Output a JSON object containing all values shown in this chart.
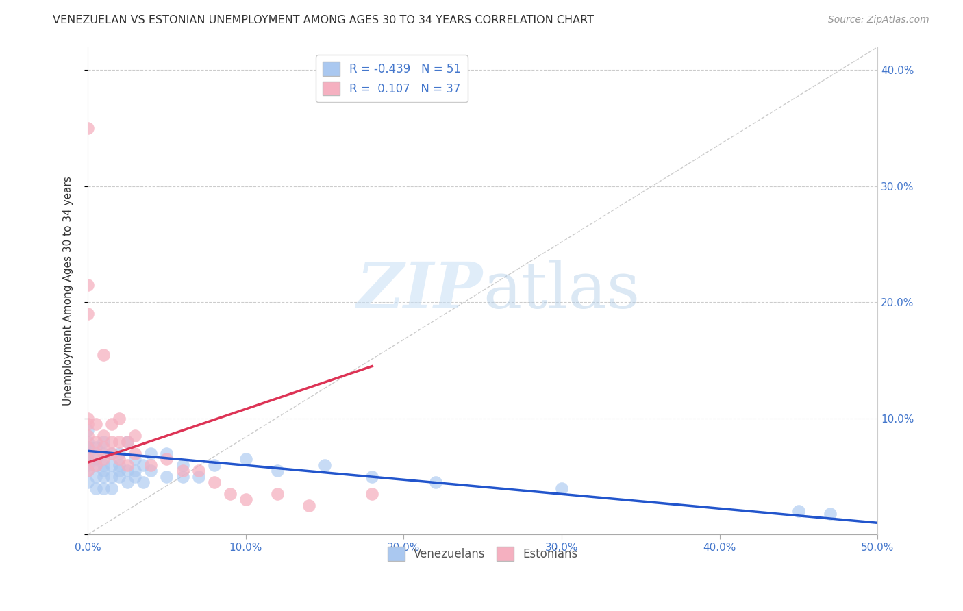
{
  "title": "VENEZUELAN VS ESTONIAN UNEMPLOYMENT AMONG AGES 30 TO 34 YEARS CORRELATION CHART",
  "source": "Source: ZipAtlas.com",
  "ylabel": "Unemployment Among Ages 30 to 34 years",
  "xlim": [
    0,
    0.5
  ],
  "ylim": [
    0,
    0.42
  ],
  "watermark_zip": "ZIP",
  "watermark_atlas": "atlas",
  "blue_R": "-0.439",
  "blue_N": "51",
  "pink_R": "0.107",
  "pink_N": "37",
  "blue_color": "#aac8f0",
  "pink_color": "#f5b0c0",
  "blue_line_color": "#2255cc",
  "pink_line_color": "#dd3355",
  "diagonal_color": "#cccccc",
  "grid_color": "#cccccc",
  "axis_color": "#4477cc",
  "venezuelan_x": [
    0.0,
    0.0,
    0.0,
    0.0,
    0.0,
    0.0,
    0.0,
    0.0,
    0.005,
    0.005,
    0.005,
    0.005,
    0.005,
    0.01,
    0.01,
    0.01,
    0.01,
    0.01,
    0.01,
    0.015,
    0.015,
    0.015,
    0.015,
    0.02,
    0.02,
    0.02,
    0.02,
    0.025,
    0.025,
    0.025,
    0.03,
    0.03,
    0.03,
    0.035,
    0.035,
    0.04,
    0.04,
    0.05,
    0.05,
    0.06,
    0.06,
    0.07,
    0.08,
    0.1,
    0.12,
    0.15,
    0.18,
    0.22,
    0.3,
    0.45,
    0.47
  ],
  "venezuelan_y": [
    0.045,
    0.055,
    0.06,
    0.065,
    0.07,
    0.075,
    0.08,
    0.09,
    0.04,
    0.05,
    0.06,
    0.065,
    0.075,
    0.04,
    0.05,
    0.055,
    0.06,
    0.07,
    0.08,
    0.04,
    0.05,
    0.06,
    0.07,
    0.05,
    0.055,
    0.06,
    0.07,
    0.045,
    0.055,
    0.08,
    0.05,
    0.055,
    0.065,
    0.045,
    0.06,
    0.055,
    0.07,
    0.05,
    0.07,
    0.05,
    0.06,
    0.05,
    0.06,
    0.065,
    0.055,
    0.06,
    0.05,
    0.045,
    0.04,
    0.02,
    0.018
  ],
  "estonian_x": [
    0.0,
    0.0,
    0.0,
    0.0,
    0.0,
    0.0,
    0.0,
    0.0,
    0.0,
    0.005,
    0.005,
    0.005,
    0.005,
    0.01,
    0.01,
    0.01,
    0.01,
    0.015,
    0.015,
    0.015,
    0.02,
    0.02,
    0.02,
    0.025,
    0.025,
    0.03,
    0.03,
    0.04,
    0.05,
    0.06,
    0.07,
    0.08,
    0.09,
    0.1,
    0.12,
    0.14,
    0.18
  ],
  "estonian_y": [
    0.055,
    0.065,
    0.075,
    0.085,
    0.095,
    0.1,
    0.19,
    0.215,
    0.35,
    0.06,
    0.07,
    0.08,
    0.095,
    0.065,
    0.075,
    0.085,
    0.155,
    0.07,
    0.08,
    0.095,
    0.065,
    0.08,
    0.1,
    0.06,
    0.08,
    0.07,
    0.085,
    0.06,
    0.065,
    0.055,
    0.055,
    0.045,
    0.035,
    0.03,
    0.035,
    0.025,
    0.035
  ],
  "blue_trend_x": [
    0.0,
    0.5
  ],
  "blue_trend_y": [
    0.072,
    0.01
  ],
  "pink_trend_x": [
    0.0,
    0.18
  ],
  "pink_trend_y": [
    0.062,
    0.145
  ]
}
